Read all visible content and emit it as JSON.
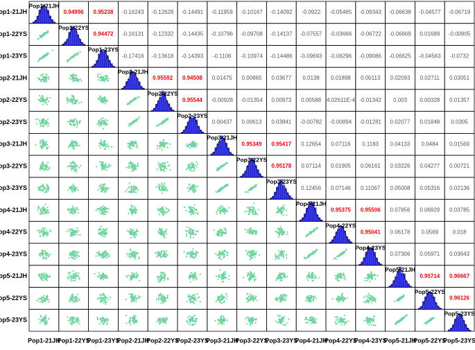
{
  "chart_data": {
    "type": "scatter-matrix",
    "variables": [
      "Pop1-21JH",
      "Pop1-22YS",
      "Pop1-23YS",
      "Pop2-21JH",
      "Pop2-22YS",
      "Pop2-23YS",
      "Pop3-21JH",
      "Pop3-22YS",
      "Pop3-23YS",
      "Pop4-21JH",
      "Pop4-22YS",
      "Pop4-23YS",
      "Pop5-21JH",
      "Pop5-22YS",
      "Pop5-23YS"
    ],
    "correlations": [
      [
        0.94996,
        0.95238,
        -0.16243,
        -0.12628,
        -0.14491,
        -0.11959,
        -0.10167,
        -0.14092,
        -0.0922,
        -0.05465,
        -0.09343,
        -0.06638,
        -0.04577,
        -0.06719
      ],
      [
        0.94472,
        -0.16131,
        -0.12332,
        -0.14435,
        -0.10796,
        -0.09708,
        -0.14137,
        -0.07557,
        -0.03666,
        -0.06722,
        -0.06669,
        0.01689,
        -0.00905
      ],
      [
        -0.17416,
        -0.13618,
        -0.14393,
        -0.1106,
        -0.10974,
        -0.14486,
        -0.09693,
        -0.06296,
        -0.09086,
        -0.06625,
        -0.04563,
        -0.0732
      ],
      [
        0.95592,
        0.94508,
        0.01475,
        0.00865,
        0.03677,
        0.0138,
        0.01898,
        0.00113,
        0.02093,
        0.02711,
        0.03051
      ],
      [
        0.95544,
        -0.00928,
        -0.01354,
        0.00973,
        0.00588,
        {
          "value": 0.000402611,
          "label": "4.02611E-4"
        },
        -0.01342,
        0.003,
        0.00328,
        0.01357
      ],
      [
        0.00437,
        0.00613,
        0.03841,
        -0.00782,
        -0.00894,
        -0.01281,
        0.02077,
        0.01848,
        0.0305
      ],
      [
        0.95349,
        0.95417,
        0.12654,
        0.07116,
        0.1183,
        0.04133,
        0.0484,
        0.01569
      ],
      [
        0.95178,
        0.07114,
        0.01905,
        0.06161,
        0.03226,
        0.04277,
        0.00721
      ],
      [
        0.12456,
        0.07146,
        0.11067,
        0.05008,
        0.05316,
        0.02136
      ],
      [
        0.95375,
        0.95506,
        0.07856,
        0.06929,
        0.03785
      ],
      [
        0.95041,
        0.06178,
        0.0569,
        0.018
      ],
      [
        0.07306,
        0.05971,
        0.03643
      ],
      [
        0.95714,
        0.96667
      ],
      [
        0.96126
      ],
      []
    ],
    "highlight_above": 0.9,
    "highlight_color": "#e8000b",
    "text_color": "#555555",
    "scatter_color": "#6fd39d",
    "histogram_color": "#3c3cf0"
  }
}
